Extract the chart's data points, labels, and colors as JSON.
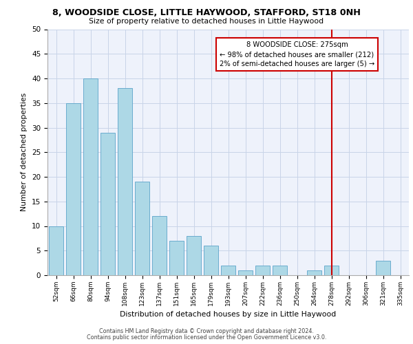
{
  "title1": "8, WOODSIDE CLOSE, LITTLE HAYWOOD, STAFFORD, ST18 0NH",
  "title2": "Size of property relative to detached houses in Little Haywood",
  "xlabel": "Distribution of detached houses by size in Little Haywood",
  "ylabel": "Number of detached properties",
  "bar_labels": [
    "52sqm",
    "66sqm",
    "80sqm",
    "94sqm",
    "108sqm",
    "123sqm",
    "137sqm",
    "151sqm",
    "165sqm",
    "179sqm",
    "193sqm",
    "207sqm",
    "222sqm",
    "236sqm",
    "250sqm",
    "264sqm",
    "278sqm",
    "292sqm",
    "306sqm",
    "321sqm",
    "335sqm"
  ],
  "bar_values": [
    10,
    35,
    40,
    29,
    38,
    19,
    12,
    7,
    8,
    6,
    2,
    1,
    2,
    2,
    0,
    1,
    2,
    0,
    0,
    3,
    0
  ],
  "bar_color": "#add8e6",
  "bar_edge_color": "#5ba3c9",
  "vline_x_idx": 16,
  "vline_color": "#cc0000",
  "annotation_box_text": "8 WOODSIDE CLOSE: 275sqm\n← 98% of detached houses are smaller (212)\n2% of semi-detached houses are larger (5) →",
  "annotation_box_color": "#cc0000",
  "ylim": [
    0,
    50
  ],
  "yticks": [
    0,
    5,
    10,
    15,
    20,
    25,
    30,
    35,
    40,
    45,
    50
  ],
  "grid_color": "#c8d4e8",
  "background_color": "#eef2fb",
  "footer1": "Contains HM Land Registry data © Crown copyright and database right 2024.",
  "footer2": "Contains public sector information licensed under the Open Government Licence v3.0."
}
